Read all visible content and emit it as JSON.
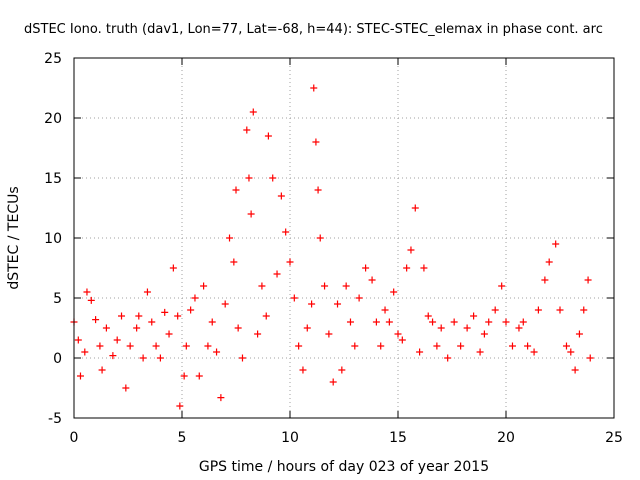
{
  "chart_data": {
    "type": "scatter",
    "title": "dSTEC Iono. truth (dav1, Lon=77, Lat=-68, h=44): STEC-STEC_elemax in phase cont. arc",
    "xlabel": "GPS time / hours of day 023 of year 2015",
    "ylabel": "dSTEC  / TECUs",
    "xlim": [
      0,
      25
    ],
    "ylim": [
      -5,
      25
    ],
    "x_ticks": [
      0,
      5,
      10,
      15,
      20,
      25
    ],
    "y_ticks": [
      -5,
      0,
      5,
      10,
      15,
      20,
      25
    ],
    "grid": true,
    "legend": "none",
    "marker": "plus",
    "colors": {
      "series": "#ff0000",
      "axes": "#000000",
      "grid": "#a0a0a0"
    },
    "series": [
      {
        "points": [
          [
            0.0,
            3.0
          ],
          [
            0.2,
            1.5
          ],
          [
            0.3,
            -1.5
          ],
          [
            0.5,
            0.5
          ],
          [
            0.6,
            5.5
          ],
          [
            0.8,
            4.8
          ],
          [
            1.0,
            3.2
          ],
          [
            1.2,
            1.0
          ],
          [
            1.3,
            -1.0
          ],
          [
            1.5,
            2.5
          ],
          [
            1.8,
            0.2
          ],
          [
            2.0,
            1.5
          ],
          [
            2.2,
            3.5
          ],
          [
            2.4,
            -2.5
          ],
          [
            2.6,
            1.0
          ],
          [
            2.9,
            2.5
          ],
          [
            3.0,
            3.5
          ],
          [
            3.2,
            0.0
          ],
          [
            3.4,
            5.5
          ],
          [
            3.6,
            3.0
          ],
          [
            3.8,
            1.0
          ],
          [
            4.0,
            0.0
          ],
          [
            4.2,
            3.8
          ],
          [
            4.4,
            2.0
          ],
          [
            4.6,
            7.5
          ],
          [
            4.8,
            3.5
          ],
          [
            4.9,
            -4.0
          ],
          [
            5.1,
            -1.5
          ],
          [
            5.2,
            1.0
          ],
          [
            5.4,
            4.0
          ],
          [
            5.6,
            5.0
          ],
          [
            5.8,
            -1.5
          ],
          [
            6.0,
            6.0
          ],
          [
            6.2,
            1.0
          ],
          [
            6.4,
            3.0
          ],
          [
            6.6,
            0.5
          ],
          [
            6.8,
            -3.3
          ],
          [
            7.0,
            4.5
          ],
          [
            7.2,
            10.0
          ],
          [
            7.4,
            8.0
          ],
          [
            7.5,
            14.0
          ],
          [
            7.6,
            2.5
          ],
          [
            7.8,
            0.0
          ],
          [
            8.0,
            19.0
          ],
          [
            8.1,
            15.0
          ],
          [
            8.2,
            12.0
          ],
          [
            8.3,
            20.5
          ],
          [
            8.5,
            2.0
          ],
          [
            8.7,
            6.0
          ],
          [
            8.9,
            3.5
          ],
          [
            9.0,
            18.5
          ],
          [
            9.2,
            15.0
          ],
          [
            9.4,
            7.0
          ],
          [
            9.6,
            13.5
          ],
          [
            9.8,
            10.5
          ],
          [
            10.0,
            8.0
          ],
          [
            10.2,
            5.0
          ],
          [
            10.4,
            1.0
          ],
          [
            10.6,
            -1.0
          ],
          [
            10.8,
            2.5
          ],
          [
            11.0,
            4.5
          ],
          [
            11.1,
            22.5
          ],
          [
            11.2,
            18.0
          ],
          [
            11.3,
            14.0
          ],
          [
            11.4,
            10.0
          ],
          [
            11.6,
            6.0
          ],
          [
            11.8,
            2.0
          ],
          [
            12.0,
            -2.0
          ],
          [
            12.2,
            4.5
          ],
          [
            12.4,
            -1.0
          ],
          [
            12.6,
            6.0
          ],
          [
            12.8,
            3.0
          ],
          [
            13.0,
            1.0
          ],
          [
            13.2,
            5.0
          ],
          [
            13.5,
            7.5
          ],
          [
            13.8,
            6.5
          ],
          [
            14.0,
            3.0
          ],
          [
            14.2,
            1.0
          ],
          [
            14.4,
            4.0
          ],
          [
            14.6,
            3.0
          ],
          [
            14.8,
            5.5
          ],
          [
            15.0,
            2.0
          ],
          [
            15.2,
            1.5
          ],
          [
            15.4,
            7.5
          ],
          [
            15.6,
            9.0
          ],
          [
            15.8,
            12.5
          ],
          [
            16.0,
            0.5
          ],
          [
            16.2,
            7.5
          ],
          [
            16.4,
            3.5
          ],
          [
            16.6,
            3.0
          ],
          [
            16.8,
            1.0
          ],
          [
            17.0,
            2.5
          ],
          [
            17.3,
            0.0
          ],
          [
            17.6,
            3.0
          ],
          [
            17.9,
            1.0
          ],
          [
            18.2,
            2.5
          ],
          [
            18.5,
            3.5
          ],
          [
            18.8,
            0.5
          ],
          [
            19.0,
            2.0
          ],
          [
            19.2,
            3.0
          ],
          [
            19.5,
            4.0
          ],
          [
            19.8,
            6.0
          ],
          [
            20.0,
            3.0
          ],
          [
            20.3,
            1.0
          ],
          [
            20.6,
            2.5
          ],
          [
            20.8,
            3.0
          ],
          [
            21.0,
            1.0
          ],
          [
            21.3,
            0.5
          ],
          [
            21.5,
            4.0
          ],
          [
            21.8,
            6.5
          ],
          [
            22.0,
            8.0
          ],
          [
            22.3,
            9.5
          ],
          [
            22.5,
            4.0
          ],
          [
            22.8,
            1.0
          ],
          [
            23.0,
            0.5
          ],
          [
            23.2,
            -1.0
          ],
          [
            23.4,
            2.0
          ],
          [
            23.6,
            4.0
          ],
          [
            23.8,
            6.5
          ],
          [
            23.9,
            0.0
          ]
        ]
      }
    ]
  }
}
